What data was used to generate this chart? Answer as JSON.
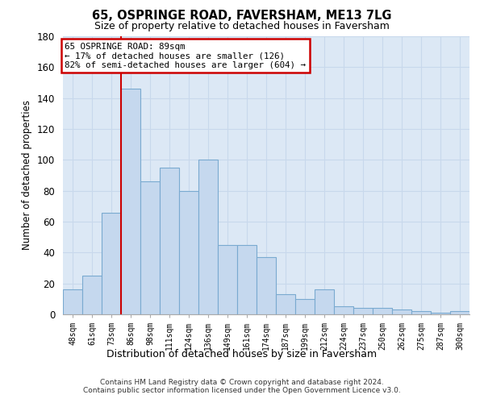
{
  "title": "65, OSPRINGE ROAD, FAVERSHAM, ME13 7LG",
  "subtitle": "Size of property relative to detached houses in Faversham",
  "xlabel": "Distribution of detached houses by size in Faversham",
  "ylabel": "Number of detached properties",
  "categories": [
    "48sqm",
    "61sqm",
    "73sqm",
    "86sqm",
    "98sqm",
    "111sqm",
    "124sqm",
    "136sqm",
    "149sqm",
    "161sqm",
    "174sqm",
    "187sqm",
    "199sqm",
    "212sqm",
    "224sqm",
    "237sqm",
    "250sqm",
    "262sqm",
    "275sqm",
    "287sqm",
    "300sqm"
  ],
  "values": [
    16,
    25,
    66,
    146,
    86,
    95,
    80,
    100,
    45,
    45,
    37,
    13,
    10,
    16,
    5,
    4,
    4,
    3,
    2,
    1,
    2
  ],
  "bar_color": "#c5d8ee",
  "bar_edge_color": "#7aaad0",
  "annotation_text": "65 OSPRINGE ROAD: 89sqm\n← 17% of detached houses are smaller (126)\n82% of semi-detached houses are larger (604) →",
  "annotation_box_facecolor": "#ffffff",
  "annotation_box_edge_color": "#cc0000",
  "vline_color": "#cc0000",
  "grid_color": "#c8d8ec",
  "background_color": "#dce8f5",
  "footer_line1": "Contains HM Land Registry data © Crown copyright and database right 2024.",
  "footer_line2": "Contains public sector information licensed under the Open Government Licence v3.0.",
  "ylim": [
    0,
    180
  ],
  "yticks": [
    0,
    20,
    40,
    60,
    80,
    100,
    120,
    140,
    160,
    180
  ],
  "vline_index": 3,
  "fig_width": 6.0,
  "fig_height": 5.0,
  "dpi": 100
}
